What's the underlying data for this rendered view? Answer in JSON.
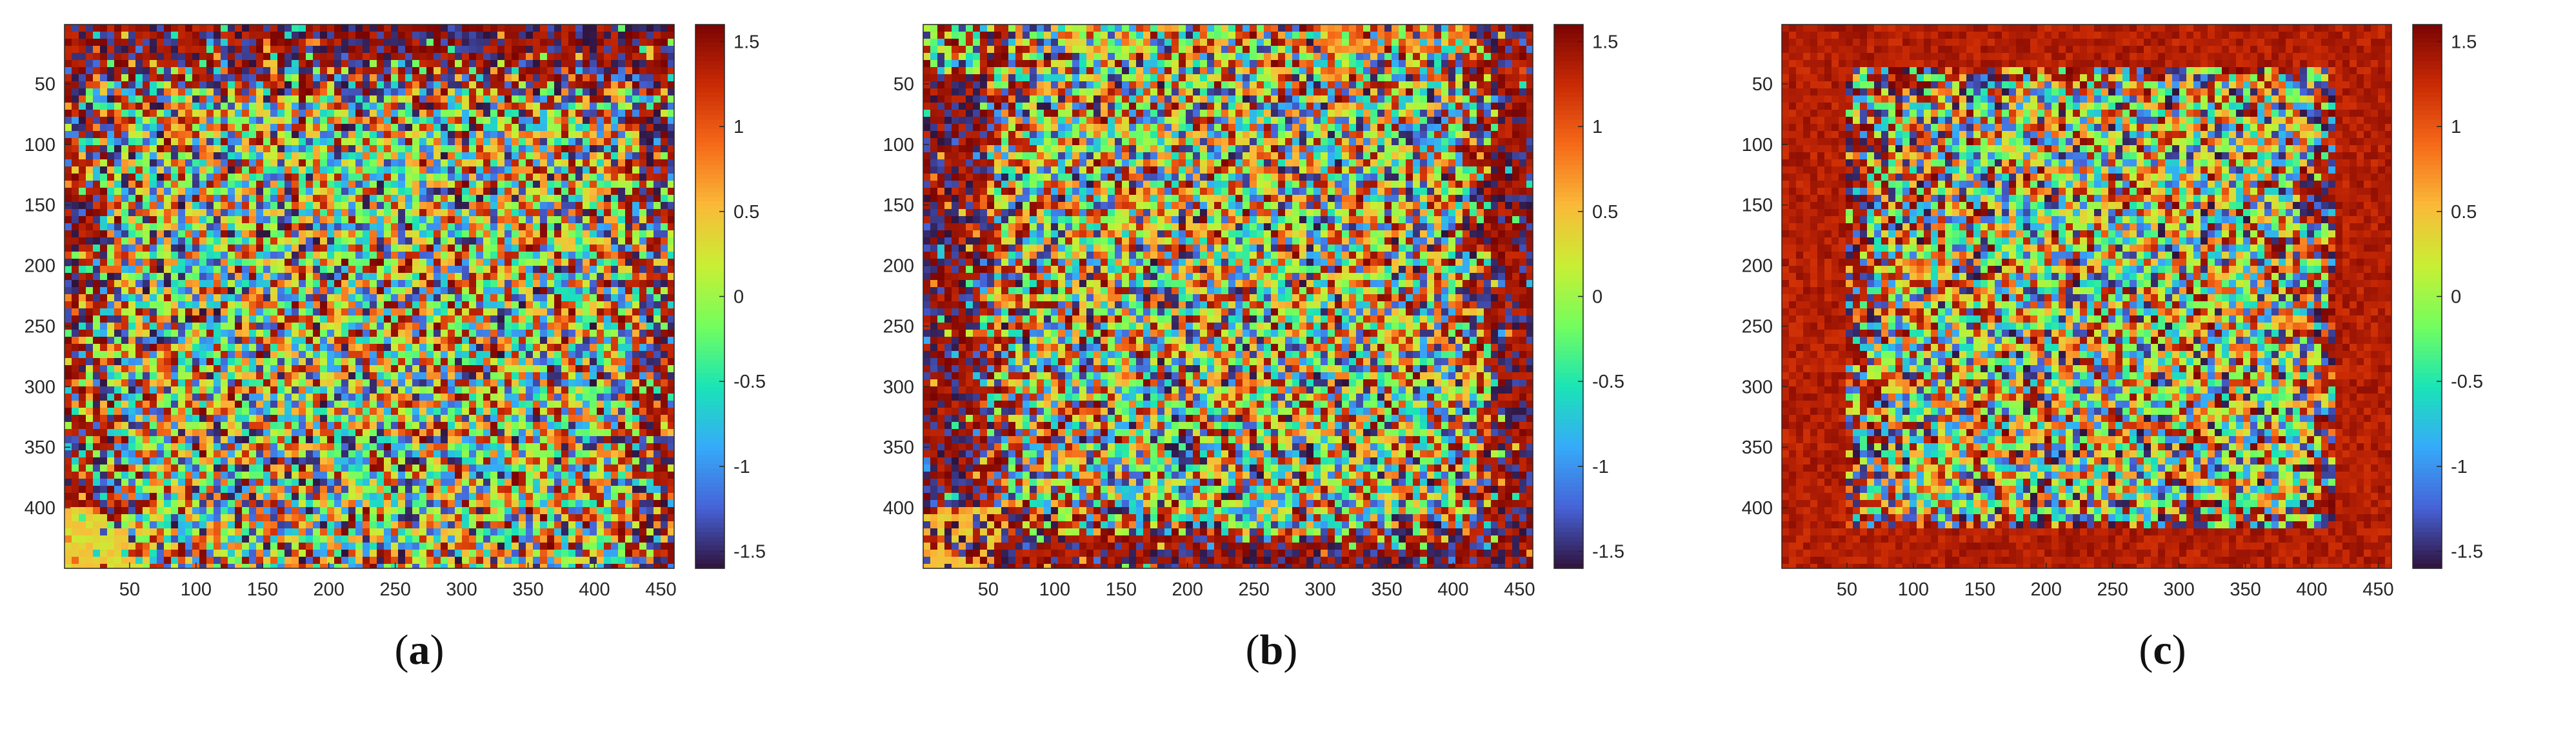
{
  "chart_data": [
    {
      "type": "heatmap",
      "panel_label": "a",
      "pattern": "a",
      "xlim": [
        1,
        460
      ],
      "ylim": [
        1,
        450
      ],
      "x_ticks": [
        50,
        100,
        150,
        200,
        250,
        300,
        350,
        400,
        450
      ],
      "y_ticks": [
        50,
        100,
        150,
        200,
        250,
        300,
        350,
        400
      ],
      "colorbar": {
        "range": [
          -1.6,
          1.6
        ],
        "ticks": [
          1.5,
          1,
          0.5,
          0,
          -0.5,
          -1,
          -1.5
        ],
        "colormap": [
          "#30123b",
          "#4662d7",
          "#36aaf9",
          "#1ae4b6",
          "#72fe5e",
          "#c8ef34",
          "#faba39",
          "#f66b19",
          "#ca2a04",
          "#7a0403"
        ]
      }
    },
    {
      "type": "heatmap",
      "panel_label": "b",
      "pattern": "b",
      "xlim": [
        1,
        460
      ],
      "ylim": [
        1,
        450
      ],
      "x_ticks": [
        50,
        100,
        150,
        200,
        250,
        300,
        350,
        400,
        450
      ],
      "y_ticks": [
        50,
        100,
        150,
        200,
        250,
        300,
        350,
        400
      ],
      "colorbar": {
        "range": [
          -1.6,
          1.6
        ],
        "ticks": [
          1.5,
          1,
          0.5,
          0,
          -0.5,
          -1,
          -1.5
        ],
        "colormap": [
          "#30123b",
          "#4662d7",
          "#36aaf9",
          "#1ae4b6",
          "#72fe5e",
          "#c8ef34",
          "#faba39",
          "#f66b19",
          "#ca2a04",
          "#7a0403"
        ]
      }
    },
    {
      "type": "heatmap",
      "panel_label": "c",
      "pattern": "c",
      "xlim": [
        1,
        460
      ],
      "ylim": [
        1,
        450
      ],
      "x_ticks": [
        50,
        100,
        150,
        200,
        250,
        300,
        350,
        400,
        450
      ],
      "y_ticks": [
        50,
        100,
        150,
        200,
        250,
        300,
        350,
        400
      ],
      "colorbar": {
        "range": [
          -1.6,
          1.6
        ],
        "ticks": [
          1.5,
          1,
          0.5,
          0,
          -0.5,
          -1,
          -1.5
        ],
        "colormap": [
          "#30123b",
          "#4662d7",
          "#36aaf9",
          "#1ae4b6",
          "#72fe5e",
          "#c8ef34",
          "#faba39",
          "#f66b19",
          "#ca2a04",
          "#7a0403"
        ]
      }
    }
  ]
}
